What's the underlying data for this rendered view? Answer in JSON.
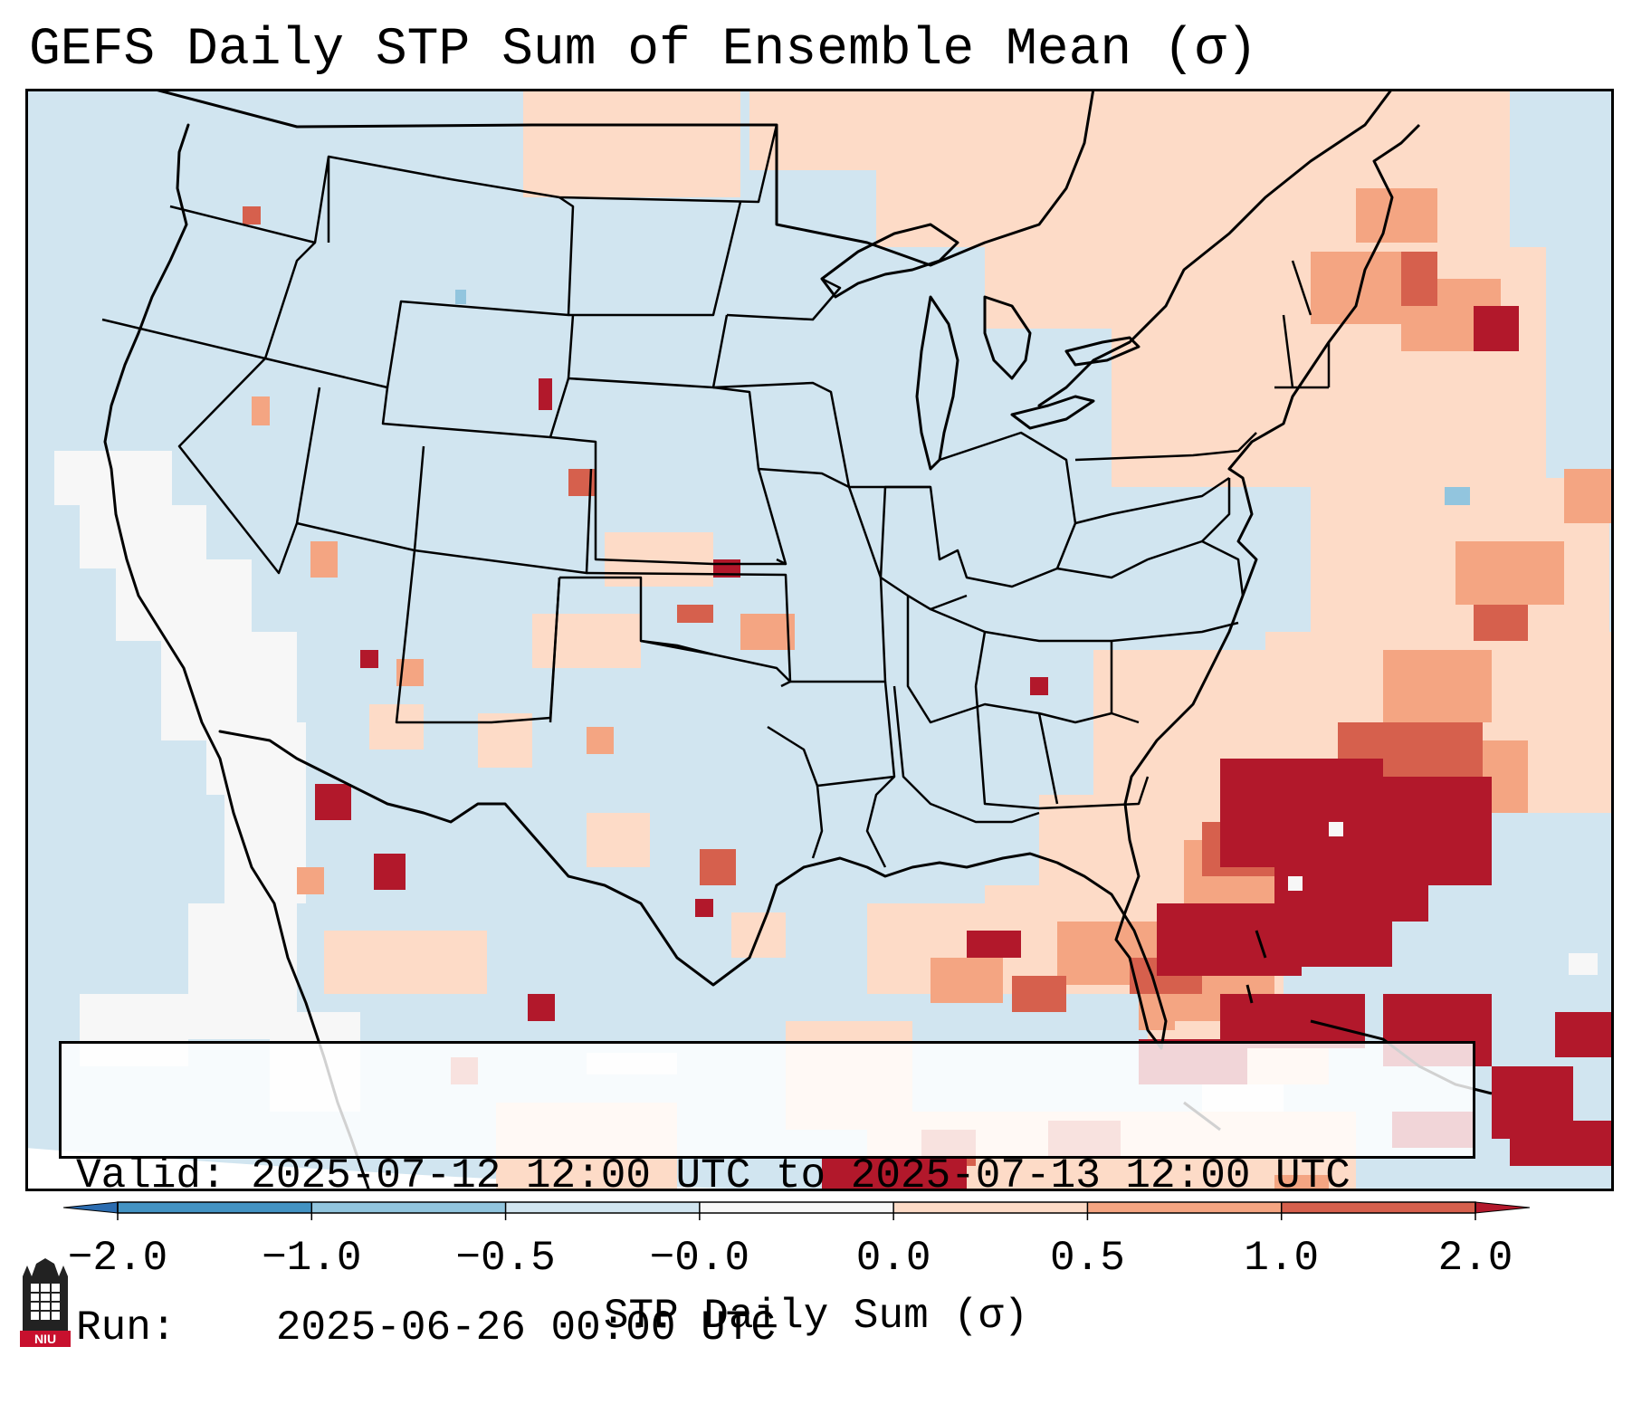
{
  "title": "GEFS Daily STP Sum of Ensemble Mean (σ)",
  "info": {
    "valid_label": "Valid:",
    "valid_value": "2025-07-12 12:00 UTC to 2025-07-13 12:00 UTC",
    "run_label": "Run:",
    "run_value": "2025-06-26 00:00 UTC"
  },
  "colorbar": {
    "label": "STP Daily Sum (σ)",
    "ticks": [
      "−2.0",
      "−1.0",
      "−0.5",
      "−0.0",
      "0.0",
      "0.5",
      "1.0",
      "2.0"
    ],
    "bins": [
      {
        "range": "< -2.0",
        "color": "#2b6cb0"
      },
      {
        "range": "-2.0 to -1.0",
        "color": "#4393c3"
      },
      {
        "range": "-1.0 to -0.5",
        "color": "#92c5de"
      },
      {
        "range": "-0.5 to -0.0",
        "color": "#d1e5f0"
      },
      {
        "range": "-0.0 to 0.0",
        "color": "#f7f7f7"
      },
      {
        "range": "0.0 to 0.5",
        "color": "#fddbc7"
      },
      {
        "range": "0.5 to 1.0",
        "color": "#f4a582"
      },
      {
        "range": "1.0 to 2.0",
        "color": "#d6604d"
      },
      {
        "range": "> 2.0",
        "color": "#b2182b"
      }
    ]
  },
  "colors": {
    "ocean": "#d1e5f0",
    "neutral": "#f7f7f7",
    "border": "#000000"
  },
  "logo": {
    "text": "NIU"
  }
}
